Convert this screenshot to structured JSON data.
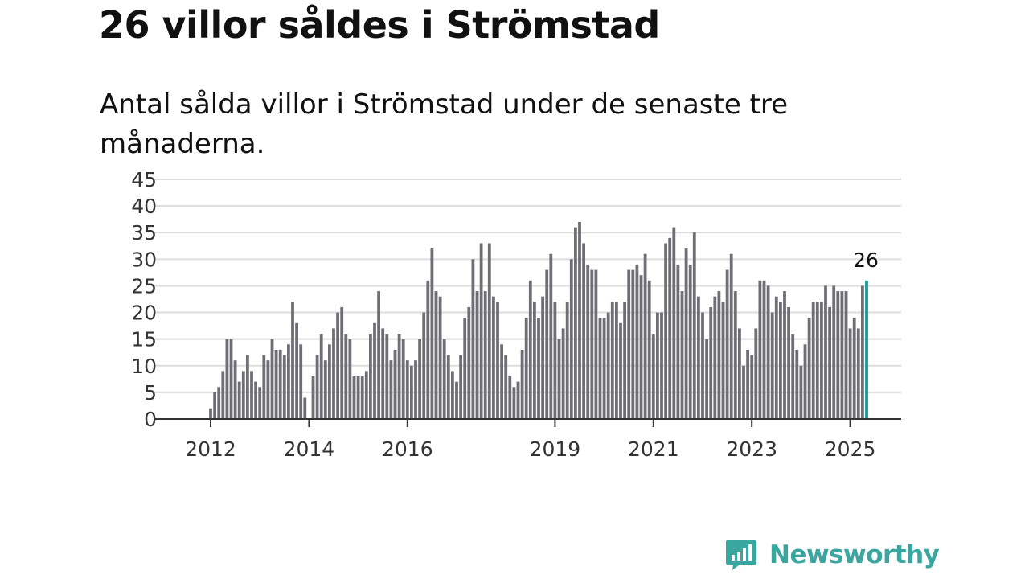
{
  "header": {
    "title": "26 villor såldes i Strömstad",
    "subtitle": "Antal sålda villor i Strömstad under de senaste tre månaderna."
  },
  "brand": {
    "name": "Newsworthy",
    "icon": "newsworthy-logo-icon",
    "color": "#3aa6a0"
  },
  "colors": {
    "bar": "#6f6e74",
    "highlight": "#1a9a96",
    "grid": "#dddddd",
    "axis": "#333333"
  },
  "chart_data": {
    "type": "bar",
    "title": "26 villor såldes i Strömstad",
    "subtitle": "Antal sålda villor i Strömstad under de senaste tre månaderna.",
    "xlabel": "",
    "ylabel": "",
    "ylim": [
      0,
      45
    ],
    "yticks": [
      "0",
      "5",
      "10",
      "15",
      "20",
      "25",
      "30",
      "35",
      "40",
      "45"
    ],
    "x_tick_labels": [
      "2012",
      "2014",
      "2016",
      "2019",
      "2021",
      "2023",
      "2025"
    ],
    "grid": true,
    "legend": "none",
    "start_month": "2012-01",
    "frequency": "monthly",
    "values": [
      2,
      5,
      6,
      9,
      15,
      15,
      11,
      7,
      9,
      12,
      9,
      7,
      6,
      12,
      11,
      15,
      13,
      13,
      12,
      14,
      22,
      18,
      14,
      4,
      0,
      8,
      12,
      16,
      11,
      14,
      17,
      20,
      21,
      16,
      15,
      8,
      8,
      8,
      9,
      16,
      18,
      24,
      17,
      16,
      11,
      13,
      16,
      15,
      11,
      10,
      11,
      15,
      20,
      26,
      32,
      24,
      23,
      15,
      12,
      9,
      7,
      12,
      19,
      21,
      30,
      24,
      33,
      24,
      33,
      23,
      22,
      14,
      12,
      8,
      6,
      7,
      13,
      19,
      26,
      22,
      19,
      23,
      28,
      31,
      22,
      15,
      17,
      22,
      30,
      36,
      37,
      33,
      29,
      28,
      28,
      19,
      19,
      20,
      22,
      22,
      18,
      22,
      28,
      28,
      29,
      27,
      31,
      26,
      16,
      20,
      20,
      33,
      34,
      36,
      29,
      24,
      32,
      29,
      35,
      23,
      20,
      15,
      21,
      23,
      24,
      22,
      28,
      31,
      24,
      17,
      10,
      13,
      12,
      17,
      26,
      26,
      25,
      20,
      23,
      22,
      24,
      21,
      16,
      13,
      10,
      14,
      19,
      22,
      22,
      22,
      25,
      21,
      25,
      24,
      24,
      24,
      17,
      19,
      17,
      25,
      26
    ],
    "highlight_last": true,
    "annotation": "26"
  }
}
